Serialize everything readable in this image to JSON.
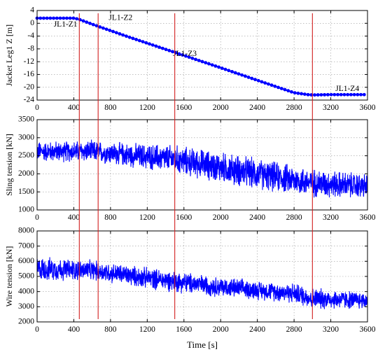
{
  "chart_data": [
    {
      "type": "line",
      "ylabel": "Jacket Leg1 Z [m]",
      "xlabel": "",
      "xlim": [
        0,
        3600
      ],
      "ylim": [
        -24,
        4
      ],
      "xticks": [
        0,
        400,
        800,
        1200,
        1600,
        2000,
        2400,
        2800,
        3200,
        3600
      ],
      "yticks": [
        4,
        0,
        -4,
        -8,
        -12,
        -16,
        -20,
        -24
      ],
      "grid": true,
      "series_color": "#0000ff",
      "marker_color": "#0000ff",
      "x": [
        0,
        200,
        400,
        450,
        650,
        1000,
        1500,
        2000,
        2500,
        2800,
        2950,
        3000,
        3200,
        3400,
        3580
      ],
      "y": [
        1.6,
        1.6,
        1.6,
        1.3,
        -0.8,
        -4.3,
        -9.1,
        -13.9,
        -18.8,
        -21.7,
        -22.3,
        -22.4,
        -22.3,
        -22.3,
        -22.3
      ],
      "annotations": [
        {
          "text": "JL1-Z1",
          "x": 310,
          "y": -0.5
        },
        {
          "text": "JL1-Z2",
          "x": 910,
          "y": 1.6
        },
        {
          "text": "JL1-Z3",
          "x": 1610,
          "y": -9.6
        },
        {
          "text": "JL1-Z4",
          "x": 3380,
          "y": -20.6
        }
      ]
    },
    {
      "type": "line",
      "ylabel": "Sling tension [kN]",
      "xlabel": "",
      "xlim": [
        0,
        3600
      ],
      "ylim": [
        1000,
        3500
      ],
      "xticks": [
        0,
        400,
        800,
        1200,
        1600,
        2000,
        2400,
        2800,
        3200,
        3600
      ],
      "yticks": [
        3500,
        3000,
        2500,
        2000,
        1500,
        1000
      ],
      "grid": true,
      "series_color": "#0000ff",
      "trend": [
        [
          0,
          2620
        ],
        [
          600,
          2620
        ],
        [
          1500,
          2400
        ],
        [
          2500,
          1950
        ],
        [
          3000,
          1750
        ],
        [
          3600,
          1650
        ]
      ],
      "amplitude": [
        [
          0,
          320
        ],
        [
          800,
          350
        ],
        [
          1500,
          450
        ],
        [
          2200,
          500
        ],
        [
          3000,
          450
        ],
        [
          3600,
          400
        ]
      ]
    },
    {
      "type": "line",
      "ylabel": "Wire tension [kN]",
      "xlabel": "Time [s]",
      "xlim": [
        0,
        3600
      ],
      "ylim": [
        2000,
        8000
      ],
      "xticks": [
        0,
        400,
        800,
        1200,
        1600,
        2000,
        2400,
        2800,
        3200,
        3600
      ],
      "yticks": [
        8000,
        7000,
        6000,
        5000,
        4000,
        3000,
        2000
      ],
      "grid": true,
      "series_color": "#0000ff",
      "trend": [
        [
          0,
          5500
        ],
        [
          600,
          5400
        ],
        [
          1200,
          4900
        ],
        [
          2000,
          4300
        ],
        [
          2800,
          3900
        ],
        [
          3000,
          3550
        ],
        [
          3600,
          3400
        ]
      ],
      "amplitude": [
        [
          0,
          900
        ],
        [
          600,
          750
        ],
        [
          1500,
          800
        ],
        [
          2500,
          700
        ],
        [
          3000,
          800
        ],
        [
          3600,
          650
        ]
      ]
    }
  ],
  "event_lines": {
    "color": "#d21f1f",
    "x": [
      460,
      665,
      1500,
      3000
    ]
  }
}
